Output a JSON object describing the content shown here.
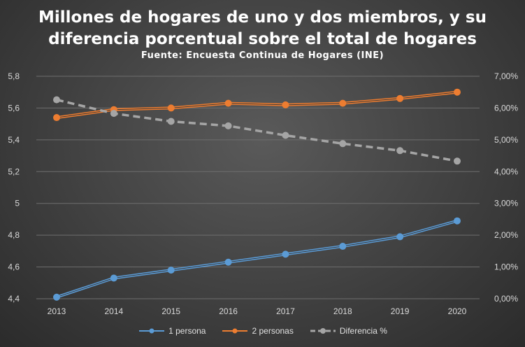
{
  "chart_data": {
    "type": "line",
    "title_line1": "Millones de hogares de uno y dos miembros, y su",
    "title_line2": "diferencia porcentual sobre el total de hogares",
    "subtitle": "Fuente: Encuesta Continua de Hogares (INE)",
    "categories": [
      "2013",
      "2014",
      "2015",
      "2016",
      "2017",
      "2018",
      "2019",
      "2020"
    ],
    "left_axis": {
      "ylim": [
        4.4,
        5.8
      ],
      "ticks": [
        "4,4",
        "4,6",
        "4,8",
        "5",
        "5,2",
        "5,4",
        "5,6",
        "5,8"
      ],
      "tick_values": [
        4.4,
        4.6,
        4.8,
        5.0,
        5.2,
        5.4,
        5.6,
        5.8
      ]
    },
    "right_axis": {
      "ylim": [
        0,
        7
      ],
      "ticks": [
        "0,00%",
        "1,00%",
        "2,00%",
        "3,00%",
        "4,00%",
        "5,00%",
        "6,00%",
        "7,00%"
      ],
      "tick_values": [
        0,
        1,
        2,
        3,
        4,
        5,
        6,
        7
      ]
    },
    "grid": true,
    "legend_position": "bottom",
    "series": [
      {
        "name": "1 persona",
        "axis": "left",
        "color": "#5b9bd5",
        "style": "solid",
        "values": [
          4.41,
          4.53,
          4.58,
          4.63,
          4.68,
          4.73,
          4.79,
          4.89
        ]
      },
      {
        "name": "2 personas",
        "axis": "left",
        "color": "#ed7d31",
        "style": "solid",
        "values": [
          5.54,
          5.59,
          5.6,
          5.63,
          5.62,
          5.63,
          5.66,
          5.7
        ]
      },
      {
        "name": "Diferencia %",
        "axis": "right",
        "color": "#a5a5a5",
        "style": "dashed",
        "values": [
          6.26,
          5.83,
          5.58,
          5.44,
          5.14,
          4.88,
          4.66,
          4.33
        ]
      }
    ]
  }
}
